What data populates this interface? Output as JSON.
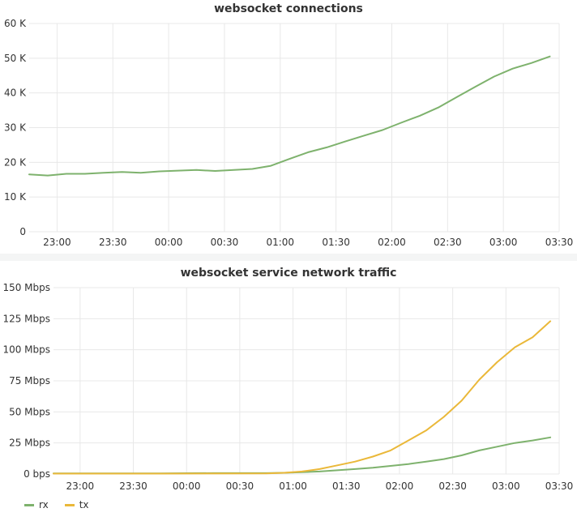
{
  "colors": {
    "rx": "#7eb26d",
    "tx": "#eab839",
    "grid": "#e8e8e8",
    "text": "#333333"
  },
  "chart_data": [
    {
      "type": "line",
      "title": "websocket connections",
      "x_ticks": [
        "23:00",
        "23:30",
        "00:00",
        "00:30",
        "01:00",
        "01:30",
        "02:00",
        "02:30",
        "03:00",
        "03:30"
      ],
      "y_ticks": [
        "0",
        "10 K",
        "20 K",
        "30 K",
        "40 K",
        "50 K",
        "60 K"
      ],
      "ylim": [
        0,
        60000
      ],
      "x_unit": "minutes after 22:45",
      "xlim": [
        0,
        285
      ],
      "grid": true,
      "series": [
        {
          "name": "",
          "color": "#7eb26d",
          "points": [
            [
              0,
              16500
            ],
            [
              10,
              16200
            ],
            [
              20,
              16700
            ],
            [
              30,
              16700
            ],
            [
              40,
              17000
            ],
            [
              50,
              17200
            ],
            [
              60,
              17000
            ],
            [
              70,
              17400
            ],
            [
              80,
              17600
            ],
            [
              90,
              17800
            ],
            [
              100,
              17500
            ],
            [
              110,
              17800
            ],
            [
              120,
              18100
            ],
            [
              130,
              19000
            ],
            [
              140,
              21000
            ],
            [
              150,
              22900
            ],
            [
              160,
              24300
            ],
            [
              170,
              26000
            ],
            [
              180,
              27700
            ],
            [
              190,
              29300
            ],
            [
              200,
              31400
            ],
            [
              210,
              33400
            ],
            [
              220,
              35800
            ],
            [
              230,
              38800
            ],
            [
              240,
              41800
            ],
            [
              250,
              44700
            ],
            [
              260,
              47000
            ],
            [
              270,
              48600
            ],
            [
              280,
              50500
            ]
          ]
        }
      ]
    },
    {
      "type": "line",
      "title": "websocket service network traffic",
      "x_ticks": [
        "23:00",
        "23:30",
        "00:00",
        "00:30",
        "01:00",
        "01:30",
        "02:00",
        "02:30",
        "03:00",
        "03:30"
      ],
      "y_ticks": [
        "0 bps",
        "25 Mbps",
        "50 Mbps",
        "75 Mbps",
        "100 Mbps",
        "125 Mbps",
        "150 Mbps"
      ],
      "ylim": [
        0,
        150
      ],
      "x_unit": "minutes after 22:45",
      "xlim": [
        0,
        285
      ],
      "grid": true,
      "legend": "bottom-left",
      "series": [
        {
          "name": "rx",
          "color": "#7eb26d",
          "points": [
            [
              0,
              0.5
            ],
            [
              30,
              0.5
            ],
            [
              60,
              0.5
            ],
            [
              90,
              0.7
            ],
            [
              120,
              0.7
            ],
            [
              130,
              1.0
            ],
            [
              140,
              1.5
            ],
            [
              150,
              2
            ],
            [
              160,
              3
            ],
            [
              170,
              4
            ],
            [
              180,
              5
            ],
            [
              190,
              6.5
            ],
            [
              200,
              8
            ],
            [
              210,
              10
            ],
            [
              220,
              12
            ],
            [
              230,
              15
            ],
            [
              240,
              19
            ],
            [
              250,
              22
            ],
            [
              260,
              25
            ],
            [
              270,
              27
            ],
            [
              280,
              29.5
            ]
          ]
        },
        {
          "name": "tx",
          "color": "#eab839",
          "points": [
            [
              0,
              0.3
            ],
            [
              30,
              0.3
            ],
            [
              60,
              0.3
            ],
            [
              90,
              0.4
            ],
            [
              120,
              0.5
            ],
            [
              130,
              1.0
            ],
            [
              140,
              2
            ],
            [
              150,
              4
            ],
            [
              160,
              7
            ],
            [
              170,
              10
            ],
            [
              180,
              14
            ],
            [
              190,
              19
            ],
            [
              200,
              27
            ],
            [
              210,
              35
            ],
            [
              220,
              46
            ],
            [
              230,
              59
            ],
            [
              240,
              76
            ],
            [
              250,
              90
            ],
            [
              260,
              102
            ],
            [
              270,
              110
            ],
            [
              280,
              123
            ]
          ]
        }
      ]
    }
  ]
}
